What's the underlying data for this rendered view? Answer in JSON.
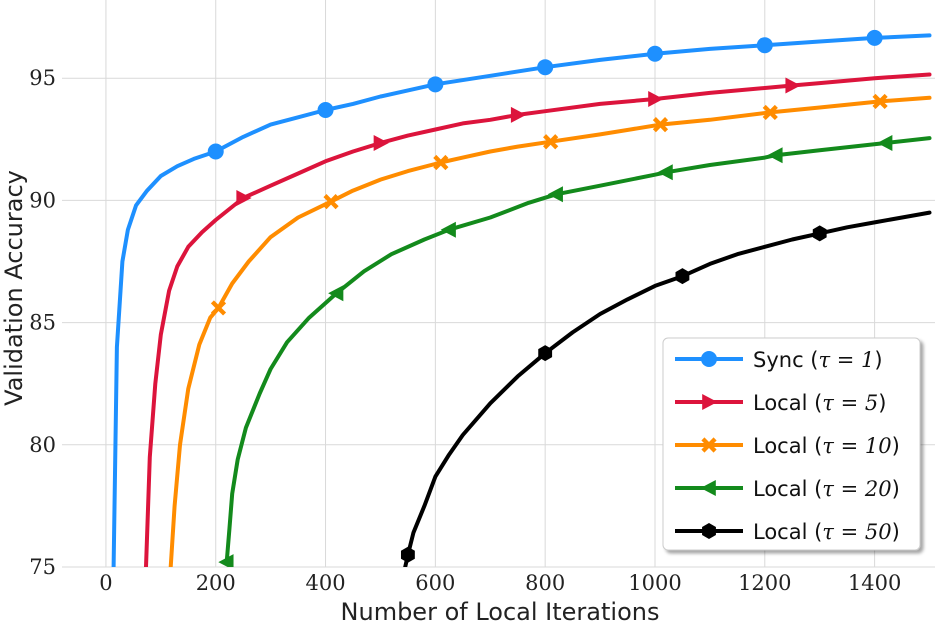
{
  "chart_data": {
    "type": "line",
    "xlabel": "Number of Local Iterations",
    "ylabel": "Validation Accuracy",
    "xlim": [
      -80,
      1510
    ],
    "ylim": [
      75,
      98.2
    ],
    "xticks": [
      0,
      200,
      400,
      600,
      800,
      1000,
      1200,
      1400
    ],
    "yticks": [
      75,
      80,
      85,
      90,
      95
    ],
    "grid": true,
    "legend_position": "lower-right",
    "series": [
      {
        "name": "Sync (τ = 1)",
        "legend_prefix": "Sync (",
        "legend_math": "τ = 1",
        "legend_suffix": ")",
        "color": "#1e90ff",
        "marker": "circle",
        "x": [
          14,
          20,
          30,
          40,
          55,
          75,
          100,
          130,
          160,
          200,
          250,
          300,
          350,
          400,
          450,
          500,
          550,
          600,
          700,
          800,
          900,
          1000,
          1100,
          1200,
          1300,
          1400,
          1500
        ],
        "y": [
          75,
          84,
          87.5,
          88.8,
          89.8,
          90.4,
          91.0,
          91.4,
          91.7,
          92.0,
          92.6,
          93.1,
          93.4,
          93.7,
          93.95,
          94.25,
          94.5,
          94.75,
          95.1,
          95.45,
          95.75,
          96.0,
          96.2,
          96.35,
          96.5,
          96.65,
          96.75
        ],
        "marker_x": [
          200,
          400,
          600,
          800,
          1000,
          1200,
          1400
        ]
      },
      {
        "name": "Local (τ = 5)",
        "legend_prefix": "Local (",
        "legend_math": "τ = 5",
        "legend_suffix": ")",
        "color": "#dc143c",
        "marker": "triangle-right",
        "x": [
          73,
          80,
          90,
          100,
          115,
          130,
          150,
          175,
          200,
          250,
          300,
          350,
          400,
          450,
          500,
          550,
          600,
          650,
          700,
          750,
          800,
          900,
          1000,
          1100,
          1200,
          1250,
          1300,
          1400,
          1500
        ],
        "y": [
          75,
          79.5,
          82.5,
          84.5,
          86.3,
          87.3,
          88.1,
          88.7,
          89.2,
          90.1,
          90.6,
          91.1,
          91.6,
          92.0,
          92.35,
          92.65,
          92.9,
          93.15,
          93.3,
          93.5,
          93.65,
          93.95,
          94.15,
          94.4,
          94.6,
          94.7,
          94.8,
          95.0,
          95.15
        ],
        "marker_x": [
          250,
          500,
          750,
          1000,
          1250
        ]
      },
      {
        "name": "Local (τ = 10)",
        "legend_prefix": "Local (",
        "legend_math": "τ = 10",
        "legend_suffix": ")",
        "color": "#ff8c00",
        "marker": "x",
        "x": [
          118,
          125,
          135,
          150,
          170,
          190,
          205,
          230,
          260,
          300,
          350,
          410,
          450,
          500,
          550,
          610,
          650,
          700,
          750,
          810,
          900,
          1010,
          1100,
          1210,
          1300,
          1410,
          1500
        ],
        "y": [
          75,
          77.5,
          80,
          82.3,
          84.1,
          85.2,
          85.6,
          86.6,
          87.5,
          88.5,
          89.3,
          89.95,
          90.4,
          90.85,
          91.2,
          91.55,
          91.75,
          92.0,
          92.2,
          92.4,
          92.7,
          93.1,
          93.3,
          93.6,
          93.8,
          94.05,
          94.2
        ],
        "marker_x": [
          205,
          410,
          610,
          810,
          1010,
          1210,
          1410
        ]
      },
      {
        "name": "Local (τ = 20)",
        "legend_prefix": "Local (",
        "legend_math": "τ = 20",
        "legend_suffix": ")",
        "color": "#138a1c",
        "marker": "triangle-left",
        "x": [
          220,
          225,
          230,
          240,
          255,
          280,
          300,
          330,
          370,
          420,
          470,
          520,
          580,
          625,
          700,
          770,
          820,
          900,
          1000,
          1020,
          1100,
          1200,
          1220,
          1300,
          1420,
          1500
        ],
        "y": [
          75.2,
          76.6,
          78,
          79.4,
          80.7,
          82.1,
          83.1,
          84.2,
          85.2,
          86.2,
          87.1,
          87.8,
          88.4,
          88.8,
          89.3,
          89.9,
          90.25,
          90.6,
          91.05,
          91.15,
          91.45,
          91.75,
          91.85,
          92.05,
          92.35,
          92.55
        ],
        "marker_x": [
          220,
          420,
          625,
          820,
          1020,
          1220,
          1420
        ]
      },
      {
        "name": "Local (τ = 50)",
        "legend_prefix": "Local (",
        "legend_math": "τ = 50",
        "legend_suffix": ")",
        "color": "#000000",
        "marker": "hexagon",
        "x": [
          545,
          550,
          560,
          580,
          600,
          625,
          650,
          700,
          750,
          800,
          850,
          900,
          950,
          1000,
          1050,
          1100,
          1150,
          1200,
          1250,
          1300,
          1350,
          1400,
          1450,
          1500
        ],
        "y": [
          75,
          75.5,
          76.4,
          77.5,
          78.7,
          79.6,
          80.4,
          81.7,
          82.8,
          83.75,
          84.6,
          85.35,
          85.95,
          86.5,
          86.9,
          87.4,
          87.8,
          88.1,
          88.4,
          88.65,
          88.9,
          89.1,
          89.3,
          89.5
        ],
        "marker_x": [
          550,
          800,
          1050,
          1300
        ]
      }
    ]
  }
}
